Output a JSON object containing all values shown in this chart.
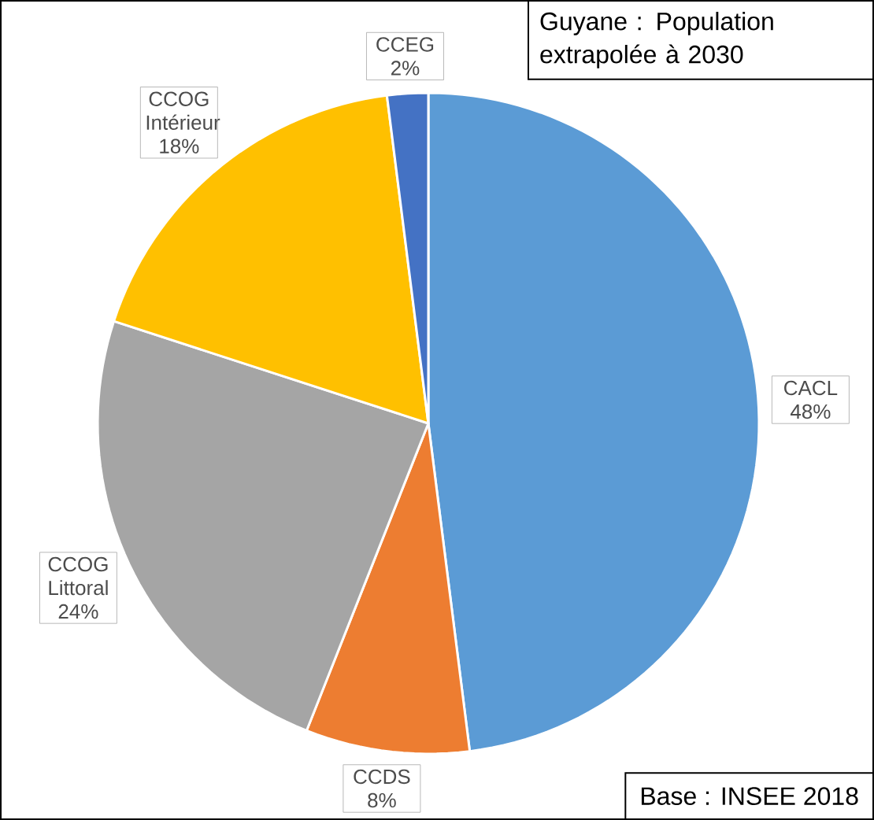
{
  "chart_data": {
    "type": "pie",
    "title": "Guyane : Population extrapolée à 2030",
    "categories": [
      "CACL",
      "CCDS",
      "CCOG Littoral",
      "CCOG Intérieur",
      "CCEG"
    ],
    "values": [
      48,
      8,
      24,
      18,
      2
    ],
    "value_labels": [
      "48%",
      "8%",
      "24%",
      "18%",
      "2%"
    ],
    "colors": [
      "#5b9bd5",
      "#ed7d31",
      "#a5a5a5",
      "#ffc000",
      "#4472c4"
    ],
    "legend": false,
    "annotations": [
      "Base : INSEE 2018"
    ]
  }
}
